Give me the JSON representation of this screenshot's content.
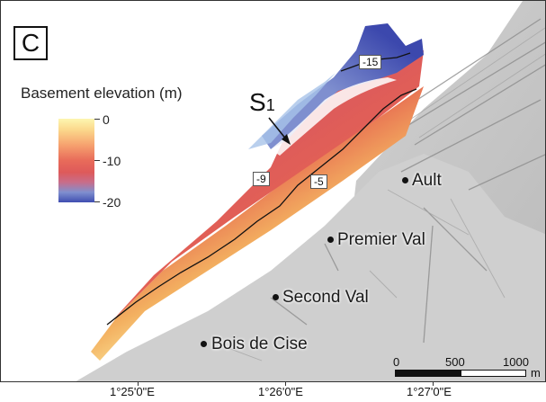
{
  "panel": {
    "letter": "C"
  },
  "legend": {
    "title": "Basement elevation (m)",
    "ticks": [
      "0",
      "-10",
      "-20"
    ]
  },
  "feature": {
    "label_main": "S",
    "label_sub": "1"
  },
  "contours": {
    "c1": "-15",
    "c2": "-9",
    "c3": "-5"
  },
  "places": [
    {
      "name": "Ault"
    },
    {
      "name": "Premier Val"
    },
    {
      "name": "Second Val"
    },
    {
      "name": "Bois de Cise"
    }
  ],
  "scale": {
    "labels": [
      "0",
      "500",
      "1000"
    ],
    "unit": "m"
  },
  "axis": {
    "x_labels": [
      "1°25'0\"E",
      "1°26'0\"E",
      "1°27'0\"E"
    ]
  },
  "colors": {
    "ramp_high": "#fdf6b0",
    "ramp_mid": "#e86b5a",
    "ramp_low": "#3f4db0",
    "relief": "#c9c9c9",
    "contour": "#111111"
  }
}
